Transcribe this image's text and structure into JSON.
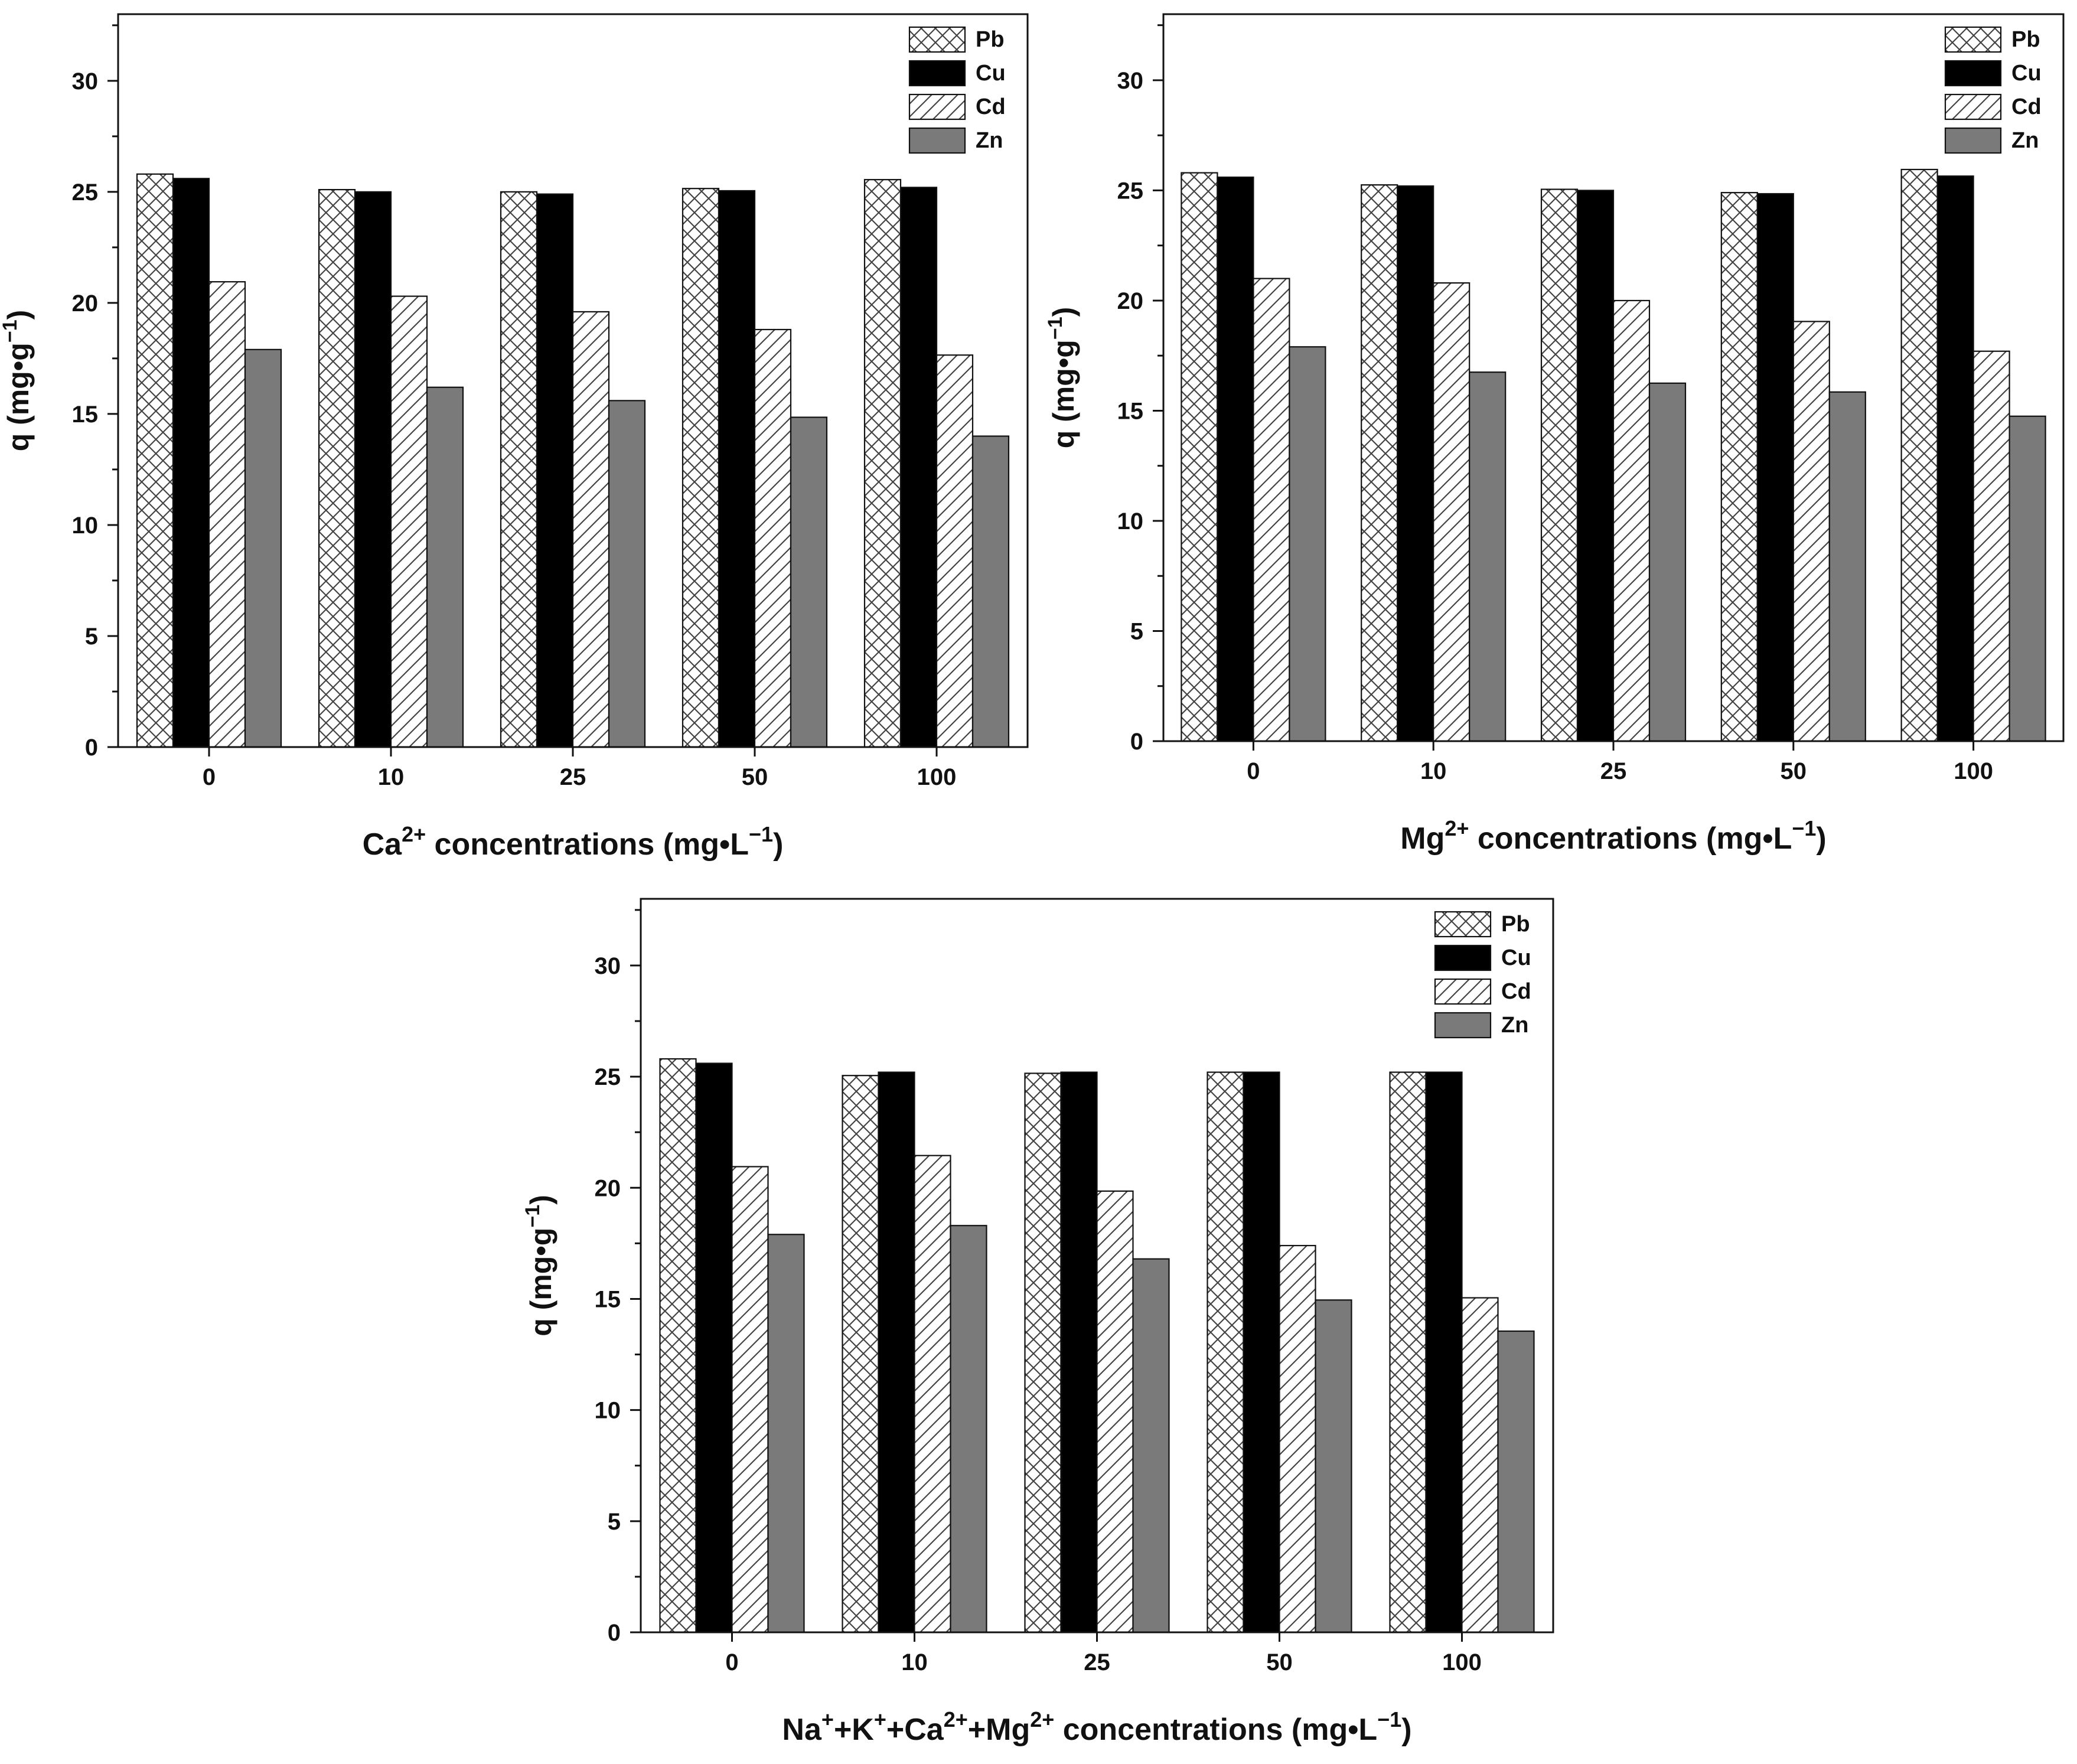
{
  "colors": {
    "Pb": "#ffffff",
    "Cu": "#000000",
    "Cd": "#ffffff",
    "Zn": "#7a7a7a",
    "axis": "#111111",
    "hatch": "#444444"
  },
  "chart_data": [
    {
      "type": "bar",
      "categories": [
        "0",
        "10",
        "25",
        "50",
        "100"
      ],
      "series": [
        {
          "name": "Pb",
          "pattern": "crosshatch",
          "values": [
            25.8,
            25.1,
            25.0,
            25.15,
            25.55
          ]
        },
        {
          "name": "Cu",
          "pattern": "solid-black",
          "values": [
            25.6,
            25.0,
            24.9,
            25.05,
            25.2
          ]
        },
        {
          "name": "Cd",
          "pattern": "diagonal",
          "values": [
            20.95,
            20.3,
            19.6,
            18.8,
            17.65
          ]
        },
        {
          "name": "Zn",
          "pattern": "solid-gray",
          "values": [
            17.9,
            16.2,
            15.6,
            14.85,
            14.0
          ]
        }
      ],
      "ylabel_main": "q (mg•g",
      "ylabel_sup": "−1",
      "ylabel_end": ")",
      "xlabel_parts": [
        {
          "text": "Ca",
          "sup": false
        },
        {
          "text": "2+",
          "sup": true
        },
        {
          "text": " concentrations (mg•L",
          "sup": false
        },
        {
          "text": "−1",
          "sup": true
        },
        {
          "text": ")",
          "sup": false
        }
      ],
      "ylim": [
        0,
        33
      ],
      "yticks": [
        "0",
        "5",
        "10",
        "15",
        "20",
        "25",
        "30"
      ],
      "legend": [
        "Pb",
        "Cu",
        "Cd",
        "Zn"
      ],
      "legend_position": "top-right"
    },
    {
      "type": "bar",
      "categories": [
        "0",
        "10",
        "25",
        "50",
        "100"
      ],
      "series": [
        {
          "name": "Pb",
          "pattern": "crosshatch",
          "values": [
            25.8,
            25.25,
            25.05,
            24.9,
            25.95
          ]
        },
        {
          "name": "Cu",
          "pattern": "solid-black",
          "values": [
            25.6,
            25.2,
            25.0,
            24.85,
            25.65
          ]
        },
        {
          "name": "Cd",
          "pattern": "diagonal",
          "values": [
            21.0,
            20.8,
            20.0,
            19.05,
            17.7
          ]
        },
        {
          "name": "Zn",
          "pattern": "solid-gray",
          "values": [
            17.9,
            16.75,
            16.25,
            15.85,
            14.75
          ]
        }
      ],
      "ylabel_main": "q (mg•g",
      "ylabel_sup": "−1",
      "ylabel_end": ")",
      "xlabel_parts": [
        {
          "text": "Mg",
          "sup": false
        },
        {
          "text": "2+",
          "sup": true
        },
        {
          "text": " concentrations (mg•L",
          "sup": false
        },
        {
          "text": "−1",
          "sup": true
        },
        {
          "text": ")",
          "sup": false
        }
      ],
      "ylim": [
        0,
        33
      ],
      "yticks": [
        "0",
        "5",
        "10",
        "15",
        "20",
        "25",
        "30"
      ],
      "legend": [
        "Pb",
        "Cu",
        "Cd",
        "Zn"
      ],
      "legend_position": "top-right"
    },
    {
      "type": "bar",
      "categories": [
        "0",
        "10",
        "25",
        "50",
        "100"
      ],
      "series": [
        {
          "name": "Pb",
          "pattern": "crosshatch",
          "values": [
            25.8,
            25.05,
            25.15,
            25.2,
            25.2
          ]
        },
        {
          "name": "Cu",
          "pattern": "solid-black",
          "values": [
            25.6,
            25.2,
            25.2,
            25.2,
            25.2
          ]
        },
        {
          "name": "Cd",
          "pattern": "diagonal",
          "values": [
            20.95,
            21.45,
            19.85,
            17.4,
            15.05
          ]
        },
        {
          "name": "Zn",
          "pattern": "solid-gray",
          "values": [
            17.9,
            18.3,
            16.8,
            14.95,
            13.55
          ]
        }
      ],
      "ylabel_main": "q (mg•g",
      "ylabel_sup": "−1",
      "ylabel_end": ")",
      "xlabel_parts": [
        {
          "text": "Na",
          "sup": false
        },
        {
          "text": "+",
          "sup": true
        },
        {
          "text": "+K",
          "sup": false
        },
        {
          "text": "+",
          "sup": true
        },
        {
          "text": "+Ca",
          "sup": false
        },
        {
          "text": "2+",
          "sup": true
        },
        {
          "text": "+Mg",
          "sup": false
        },
        {
          "text": "2+",
          "sup": true
        },
        {
          "text": " concentrations (mg•L",
          "sup": false
        },
        {
          "text": "−1",
          "sup": true
        },
        {
          "text": ")",
          "sup": false
        }
      ],
      "ylim": [
        0,
        33
      ],
      "yticks": [
        "0",
        "5",
        "10",
        "15",
        "20",
        "25",
        "30"
      ],
      "legend": [
        "Pb",
        "Cu",
        "Cd",
        "Zn"
      ],
      "legend_position": "top-right"
    }
  ]
}
